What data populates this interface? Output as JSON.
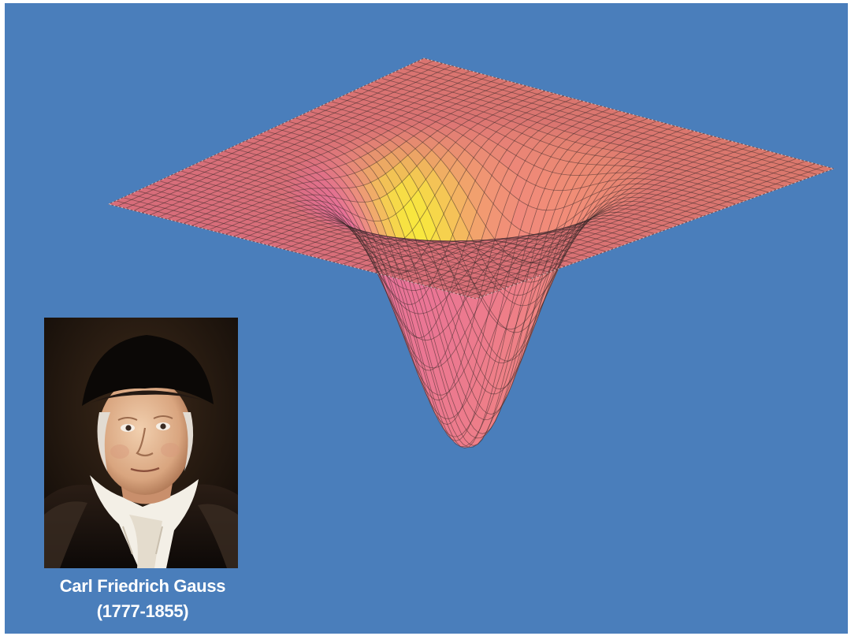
{
  "slide": {
    "background_color": "#4a7ebb"
  },
  "figure": {
    "surface_colors": [
      "#e05fb4",
      "#ee7e88",
      "#f5a25f",
      "#f8e83e"
    ],
    "mesh_color": "#3a2a2a"
  },
  "portrait": {
    "icon": "portrait-of-gauss"
  },
  "caption": {
    "name": "Carl Friedrich Gauss",
    "years": "(1777-1855)"
  }
}
